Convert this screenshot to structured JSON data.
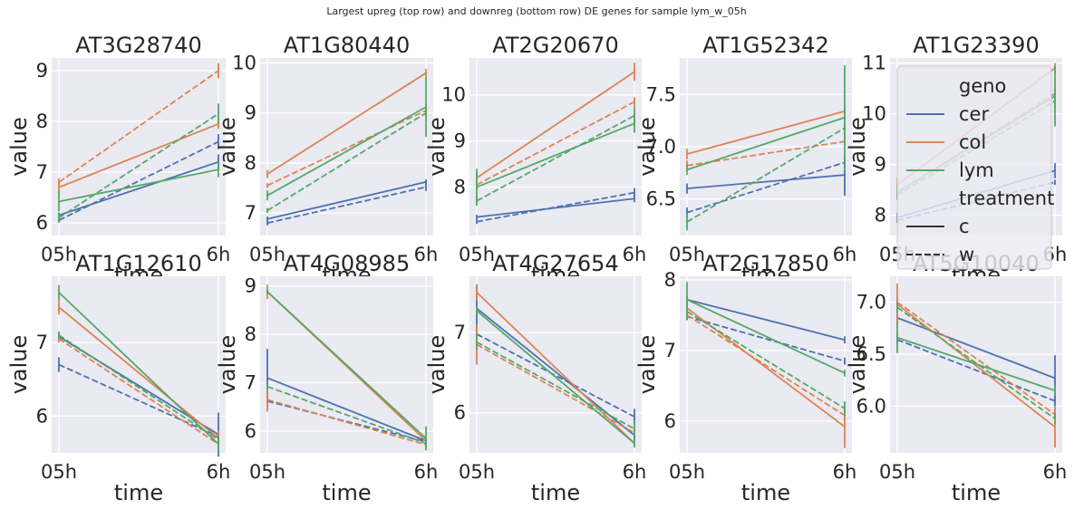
{
  "suptitle": "Largest upreg (top row) and downreg (bottom row) DE genes for sample lym_w_05h",
  "colors": {
    "cer": "#4c72b0",
    "col": "#dd8452",
    "lym": "#55a868",
    "panel_bg": "#eaeaf2",
    "grid": "#ffffff"
  },
  "legend": {
    "geno_title": "geno",
    "geno": [
      "cer",
      "col",
      "lym"
    ],
    "treatment_title": "treatment",
    "treatment": [
      "c",
      "w"
    ],
    "placement": "inside upper right of AT1G23390"
  },
  "chart_data": [
    {
      "type": "line",
      "title": "AT3G28740",
      "xlabel": "time",
      "ylabel": "value",
      "categories": [
        "05h",
        "6h"
      ],
      "ylim": [
        5.75,
        9.25
      ],
      "yticks": [
        6,
        7,
        8,
        9
      ],
      "series": [
        {
          "geno": "cer",
          "treatment": "c",
          "values": [
            6.15,
            7.2
          ],
          "err": [
            0.05,
            0.15
          ]
        },
        {
          "geno": "cer",
          "treatment": "w",
          "values": [
            6.05,
            7.6
          ],
          "err": [
            0.05,
            0.15
          ]
        },
        {
          "geno": "col",
          "treatment": "c",
          "values": [
            6.7,
            7.95
          ],
          "err": [
            0.1,
            0.1
          ]
        },
        {
          "geno": "col",
          "treatment": "w",
          "values": [
            6.8,
            9.0
          ],
          "err": [
            0.08,
            0.15
          ]
        },
        {
          "geno": "lym",
          "treatment": "c",
          "values": [
            6.42,
            7.05
          ],
          "err": [
            0.2,
            0.15
          ]
        },
        {
          "geno": "lym",
          "treatment": "w",
          "values": [
            6.1,
            8.15
          ],
          "err": [
            0.1,
            0.2
          ]
        }
      ]
    },
    {
      "type": "line",
      "title": "AT1G80440",
      "xlabel": "time",
      "ylabel": "value",
      "categories": [
        "05h",
        "6h"
      ],
      "ylim": [
        6.55,
        10.1
      ],
      "yticks": [
        7,
        8,
        9,
        10
      ],
      "series": [
        {
          "geno": "cer",
          "treatment": "c",
          "values": [
            6.88,
            7.62
          ],
          "err": [
            0.05,
            0.05
          ]
        },
        {
          "geno": "cer",
          "treatment": "w",
          "values": [
            6.8,
            7.52
          ],
          "err": [
            0.05,
            0.08
          ]
        },
        {
          "geno": "col",
          "treatment": "c",
          "values": [
            7.78,
            9.8
          ],
          "err": [
            0.08,
            0.08
          ]
        },
        {
          "geno": "col",
          "treatment": "w",
          "values": [
            7.55,
            9.05
          ],
          "err": [
            0.05,
            0.1
          ]
        },
        {
          "geno": "lym",
          "treatment": "c",
          "values": [
            7.35,
            9.12
          ],
          "err": [
            0.1,
            0.6
          ]
        },
        {
          "geno": "lym",
          "treatment": "w",
          "values": [
            7.05,
            9.0
          ],
          "err": [
            0.05,
            0.1
          ]
        }
      ]
    },
    {
      "type": "line",
      "title": "AT2G20670",
      "xlabel": "time",
      "ylabel": "value",
      "categories": [
        "05h",
        "6h"
      ],
      "ylim": [
        6.95,
        10.8
      ],
      "yticks": [
        8,
        9,
        10
      ],
      "series": [
        {
          "geno": "cer",
          "treatment": "c",
          "values": [
            7.35,
            7.75
          ],
          "err": [
            0.05,
            0.08
          ]
        },
        {
          "geno": "cer",
          "treatment": "w",
          "values": [
            7.25,
            7.88
          ],
          "err": [
            0.05,
            0.1
          ]
        },
        {
          "geno": "col",
          "treatment": "c",
          "values": [
            8.2,
            10.5
          ],
          "err": [
            0.1,
            0.2
          ]
        },
        {
          "geno": "col",
          "treatment": "w",
          "values": [
            8.05,
            9.85
          ],
          "err": [
            0.05,
            0.1
          ]
        },
        {
          "geno": "lym",
          "treatment": "c",
          "values": [
            8.0,
            9.38
          ],
          "err": [
            0.4,
            0.2
          ]
        },
        {
          "geno": "lym",
          "treatment": "w",
          "values": [
            7.7,
            9.55
          ],
          "err": [
            0.1,
            0.2
          ]
        }
      ]
    },
    {
      "type": "line",
      "title": "AT1G52342",
      "xlabel": "time",
      "ylabel": "value",
      "categories": [
        "05h",
        "6h"
      ],
      "ylim": [
        6.15,
        7.85
      ],
      "yticks": [
        6.5,
        7.0,
        7.5
      ],
      "series": [
        {
          "geno": "cer",
          "treatment": "c",
          "values": [
            6.6,
            6.73
          ],
          "err": [
            0.05,
            0.2
          ]
        },
        {
          "geno": "cer",
          "treatment": "w",
          "values": [
            6.37,
            6.85
          ],
          "err": [
            0.05,
            0.05
          ]
        },
        {
          "geno": "col",
          "treatment": "c",
          "values": [
            6.93,
            7.34
          ],
          "err": [
            0.05,
            0.05
          ]
        },
        {
          "geno": "col",
          "treatment": "w",
          "values": [
            6.82,
            7.05
          ],
          "err": [
            0.05,
            0.05
          ]
        },
        {
          "geno": "lym",
          "treatment": "c",
          "values": [
            6.78,
            7.28
          ],
          "err": [
            0.05,
            0.5
          ]
        },
        {
          "geno": "lym",
          "treatment": "w",
          "values": [
            6.28,
            7.18
          ],
          "err": [
            0.08,
            0.1
          ]
        }
      ]
    },
    {
      "type": "line",
      "title": "AT1G23390",
      "xlabel": "time",
      "ylabel": "value",
      "categories": [
        "05h",
        "6h"
      ],
      "ylim": [
        7.6,
        11.1
      ],
      "yticks": [
        8,
        9,
        10,
        11
      ],
      "series": [
        {
          "geno": "cer",
          "treatment": "c",
          "values": [
            7.95,
            8.88
          ],
          "err": [
            0.1,
            0.15
          ]
        },
        {
          "geno": "cer",
          "treatment": "w",
          "values": [
            7.9,
            8.65
          ],
          "err": [
            0.05,
            0.05
          ]
        },
        {
          "geno": "col",
          "treatment": "c",
          "values": [
            8.6,
            10.9
          ],
          "err": [
            0.15,
            0.1
          ]
        },
        {
          "geno": "col",
          "treatment": "w",
          "values": [
            8.45,
            10.4
          ],
          "err": [
            0.1,
            0.1
          ]
        },
        {
          "geno": "lym",
          "treatment": "c",
          "values": [
            8.45,
            10.35
          ],
          "err": [
            0.15,
            0.6
          ]
        },
        {
          "geno": "lym",
          "treatment": "w",
          "values": [
            8.4,
            10.25
          ],
          "err": [
            0.1,
            0.15
          ]
        }
      ]
    },
    {
      "type": "line",
      "title": "AT1G12610",
      "xlabel": "time",
      "ylabel": "value",
      "categories": [
        "05h",
        "6h"
      ],
      "ylim": [
        5.5,
        7.9
      ],
      "yticks": [
        6,
        7
      ],
      "series": [
        {
          "geno": "cer",
          "treatment": "c",
          "values": [
            7.08,
            5.75
          ],
          "err": [
            0.05,
            0.3
          ]
        },
        {
          "geno": "cer",
          "treatment": "w",
          "values": [
            6.7,
            5.72
          ],
          "err": [
            0.1,
            0.05
          ]
        },
        {
          "geno": "col",
          "treatment": "c",
          "values": [
            7.48,
            5.7
          ],
          "err": [
            0.1,
            0.1
          ]
        },
        {
          "geno": "col",
          "treatment": "w",
          "values": [
            7.05,
            5.62
          ],
          "err": [
            0.05,
            0.05
          ]
        },
        {
          "geno": "lym",
          "treatment": "c",
          "values": [
            7.68,
            5.62
          ],
          "err": [
            0.1,
            0.1
          ]
        },
        {
          "geno": "lym",
          "treatment": "w",
          "values": [
            7.1,
            5.68
          ],
          "err": [
            0.05,
            0.05
          ]
        }
      ]
    },
    {
      "type": "line",
      "title": "AT4G08985",
      "xlabel": "time",
      "ylabel": "value",
      "categories": [
        "05h",
        "6h"
      ],
      "ylim": [
        5.55,
        9.2
      ],
      "yticks": [
        6,
        7,
        8,
        9
      ],
      "series": [
        {
          "geno": "cer",
          "treatment": "c",
          "values": [
            7.1,
            5.8
          ],
          "err": [
            0.6,
            0.05
          ]
        },
        {
          "geno": "cer",
          "treatment": "w",
          "values": [
            6.62,
            5.78
          ],
          "err": [
            0.05,
            0.05
          ]
        },
        {
          "geno": "col",
          "treatment": "c",
          "values": [
            8.88,
            5.8
          ],
          "err": [
            0.15,
            0.05
          ]
        },
        {
          "geno": "col",
          "treatment": "w",
          "values": [
            6.65,
            5.72
          ],
          "err": [
            0.25,
            0.05
          ]
        },
        {
          "geno": "lym",
          "treatment": "c",
          "values": [
            8.88,
            5.85
          ],
          "err": [
            0.05,
            0.25
          ]
        },
        {
          "geno": "lym",
          "treatment": "w",
          "values": [
            6.92,
            5.75
          ],
          "err": [
            0.05,
            0.05
          ]
        }
      ]
    },
    {
      "type": "line",
      "title": "AT4G27654",
      "xlabel": "time",
      "ylabel": "value",
      "categories": [
        "05h",
        "6h"
      ],
      "ylim": [
        5.5,
        7.7
      ],
      "yticks": [
        6,
        7
      ],
      "series": [
        {
          "geno": "cer",
          "treatment": "c",
          "values": [
            7.3,
            5.72
          ],
          "err": [
            0.3,
            0.05
          ]
        },
        {
          "geno": "cer",
          "treatment": "w",
          "values": [
            6.98,
            5.95
          ],
          "err": [
            0.05,
            0.1
          ]
        },
        {
          "geno": "col",
          "treatment": "c",
          "values": [
            7.5,
            5.62
          ],
          "err": [
            0.1,
            0.05
          ]
        },
        {
          "geno": "col",
          "treatment": "w",
          "values": [
            6.85,
            5.75
          ],
          "err": [
            0.25,
            0.05
          ]
        },
        {
          "geno": "lym",
          "treatment": "c",
          "values": [
            7.27,
            5.62
          ],
          "err": [
            0.05,
            0.05
          ]
        },
        {
          "geno": "lym",
          "treatment": "w",
          "values": [
            6.88,
            5.8
          ],
          "err": [
            0.1,
            0.1
          ]
        }
      ]
    },
    {
      "type": "line",
      "title": "AT2G17850",
      "xlabel": "time",
      "ylabel": "value",
      "categories": [
        "05h",
        "6h"
      ],
      "ylim": [
        5.55,
        8.05
      ],
      "yticks": [
        6,
        7,
        8
      ],
      "series": [
        {
          "geno": "cer",
          "treatment": "c",
          "values": [
            7.72,
            7.15
          ],
          "err": [
            0.05,
            0.05
          ]
        },
        {
          "geno": "cer",
          "treatment": "w",
          "values": [
            7.48,
            6.85
          ],
          "err": [
            0.05,
            0.05
          ]
        },
        {
          "geno": "col",
          "treatment": "c",
          "values": [
            7.6,
            5.92
          ],
          "err": [
            0.15,
            0.3
          ]
        },
        {
          "geno": "col",
          "treatment": "w",
          "values": [
            7.5,
            6.08
          ],
          "err": [
            0.05,
            0.1
          ]
        },
        {
          "geno": "lym",
          "treatment": "c",
          "values": [
            7.72,
            6.68
          ],
          "err": [
            0.25,
            0.05
          ]
        },
        {
          "geno": "lym",
          "treatment": "w",
          "values": [
            7.55,
            6.18
          ],
          "err": [
            0.1,
            0.1
          ]
        }
      ]
    },
    {
      "type": "line",
      "title": "AT5G10040",
      "xlabel": "time",
      "ylabel": "value",
      "categories": [
        "05h",
        "6h"
      ],
      "ylim": [
        5.55,
        7.25
      ],
      "yticks": [
        6.0,
        6.5,
        7.0
      ],
      "series": [
        {
          "geno": "cer",
          "treatment": "c",
          "values": [
            6.85,
            6.27
          ],
          "err": [
            0.05,
            0.22
          ]
        },
        {
          "geno": "cer",
          "treatment": "w",
          "values": [
            6.64,
            6.05
          ],
          "err": [
            0.05,
            0.05
          ]
        },
        {
          "geno": "col",
          "treatment": "c",
          "values": [
            6.98,
            5.8
          ],
          "err": [
            0.2,
            0.2
          ]
        },
        {
          "geno": "col",
          "treatment": "w",
          "values": [
            7.0,
            5.92
          ],
          "err": [
            0.05,
            0.05
          ]
        },
        {
          "geno": "lym",
          "treatment": "c",
          "values": [
            6.66,
            6.15
          ],
          "err": [
            0.15,
            0.05
          ]
        },
        {
          "geno": "lym",
          "treatment": "w",
          "values": [
            6.95,
            5.88
          ],
          "err": [
            0.05,
            0.05
          ]
        }
      ]
    }
  ]
}
